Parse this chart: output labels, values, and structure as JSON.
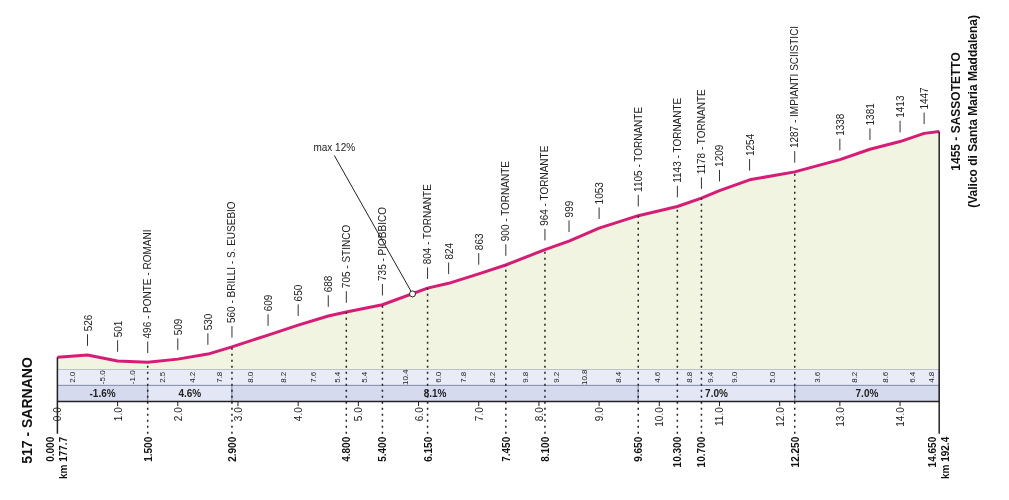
{
  "chart_data": {
    "type": "area",
    "x": [
      0,
      0.5,
      1.0,
      1.5,
      2.0,
      2.5,
      2.9,
      3.5,
      4.0,
      4.5,
      4.8,
      5.4,
      6.15,
      6.5,
      7.0,
      7.45,
      8.1,
      8.5,
      9.0,
      9.65,
      10.3,
      10.7,
      11.0,
      11.5,
      12.25,
      13.0,
      13.5,
      14.0,
      14.4,
      14.65
    ],
    "series": [
      {
        "color": "#d81b74",
        "values": [
          517,
          526,
          501,
          496,
          509,
          530,
          560,
          609,
          650,
          688,
          705,
          735,
          804,
          824,
          863,
          900,
          964,
          999,
          1053,
          1105,
          1143,
          1178,
          1209,
          1254,
          1287,
          1338,
          1381,
          1413,
          1447,
          1455
        ],
        "value_labels": [
          "517 - SARNANO",
          "526",
          "501",
          "496 - PONTE - ROMANI",
          "509",
          "530",
          "560 - BRILLI - S. EUSEBIO",
          "609",
          "650",
          "688",
          "705 - STINCO",
          "735 - PIOBBICO",
          "804 - TORNANTE",
          "824",
          "863",
          "900 - TORNANTE",
          "964 - TORNANTE",
          "999",
          "1053",
          "1105 - TORNANTE",
          "1143 - TORNANTE",
          "1178 - TORNANTE",
          "1209",
          "1254",
          "1287 - IMPIANTI SCIISTICI",
          "1338",
          "1381",
          "1413",
          "1447",
          "1455 - SASSOTETTO\n(Valico di Santa Maria Maddalena)"
        ]
      }
    ],
    "xlim": [
      0,
      14.65
    ],
    "xticks": [
      {
        "value": 0,
        "label": "0.0"
      },
      {
        "value": 1,
        "label": "1.0"
      },
      {
        "value": 2,
        "label": "2.0"
      },
      {
        "value": 3,
        "label": "3.0"
      },
      {
        "value": 4,
        "label": "4.0"
      },
      {
        "value": 5,
        "label": "5.0"
      },
      {
        "value": 6,
        "label": "6.0"
      },
      {
        "value": 7,
        "label": "7.0"
      },
      {
        "value": 8,
        "label": "8.0"
      },
      {
        "value": 9,
        "label": "9.0"
      },
      {
        "value": 10,
        "label": "10.0"
      },
      {
        "value": 11,
        "label": "11.0"
      },
      {
        "value": 12,
        "label": "12.0"
      },
      {
        "value": 13,
        "label": "13.0"
      },
      {
        "value": 14,
        "label": "14.0"
      }
    ],
    "ref_lines": [
      {
        "axis": "x",
        "value": 0,
        "label": "0.000\nkm 177.7",
        "line_style": "solid"
      },
      {
        "axis": "x",
        "value": 1.5,
        "label": "1.500",
        "line_style": "dotted"
      },
      {
        "axis": "x",
        "value": 2.9,
        "label": "2.900",
        "line_style": "dotted"
      },
      {
        "axis": "x",
        "value": 4.8,
        "label": "4.800",
        "line_style": "dotted"
      },
      {
        "axis": "x",
        "value": 5.4,
        "label": "5.400",
        "line_style": "dotted"
      },
      {
        "axis": "x",
        "value": 6.15,
        "label": "6.150",
        "line_style": "dotted"
      },
      {
        "axis": "x",
        "value": 7.45,
        "label": "7.450",
        "line_style": "dotted"
      },
      {
        "axis": "x",
        "value": 8.1,
        "label": "8.100",
        "line_style": "dotted"
      },
      {
        "axis": "x",
        "value": 9.65,
        "label": "9.650",
        "line_style": "dotted"
      },
      {
        "axis": "x",
        "value": 10.3,
        "label": "10.300",
        "line_style": "dotted"
      },
      {
        "axis": "x",
        "value": 10.7,
        "label": "10.700",
        "line_style": "dotted"
      },
      {
        "axis": "x",
        "value": 12.25,
        "label": "12.250",
        "line_style": "dotted"
      },
      {
        "axis": "x",
        "value": 14.65,
        "label": "14.650\nkm 192.4",
        "line_style": "solid"
      }
    ],
    "bands": [
      {
        "axis": "x",
        "from": 0,
        "to": 1.5,
        "label": "-1.6%",
        "color": "#d5daee"
      },
      {
        "axis": "x",
        "from": 1.5,
        "to": 2.9,
        "label": "4.6%",
        "color": "#e3e7f5"
      },
      {
        "axis": "x",
        "from": 2.9,
        "to": 9.65,
        "label": "8.1%",
        "color": "#d5daee"
      },
      {
        "axis": "x",
        "from": 9.65,
        "to": 12.25,
        "label": "7.0%",
        "color": "#e3e7f5"
      },
      {
        "axis": "x",
        "from": 12.25,
        "to": 14.65,
        "label": "7.0%",
        "color": "#d5daee"
      }
    ],
    "annotations": [
      {
        "text": "max 12%",
        "x": 5.9,
        "y": 780
      },
      "2.0",
      "-5.0",
      "-1.0",
      "2.5",
      "4.2",
      "7.8",
      "8.0",
      "8.2",
      "7.6",
      "5.4",
      "5.4",
      "10.4",
      "6.0",
      "7.8",
      "8.2",
      "9.8",
      "9.2",
      "10.8",
      "8.4",
      "4.6",
      "8.8",
      "9.4",
      "9.0",
      "5.0",
      "3.6",
      "8.2",
      "8.6",
      "6.4",
      "4.8"
    ],
    "marker": "none",
    "grid": false
  }
}
